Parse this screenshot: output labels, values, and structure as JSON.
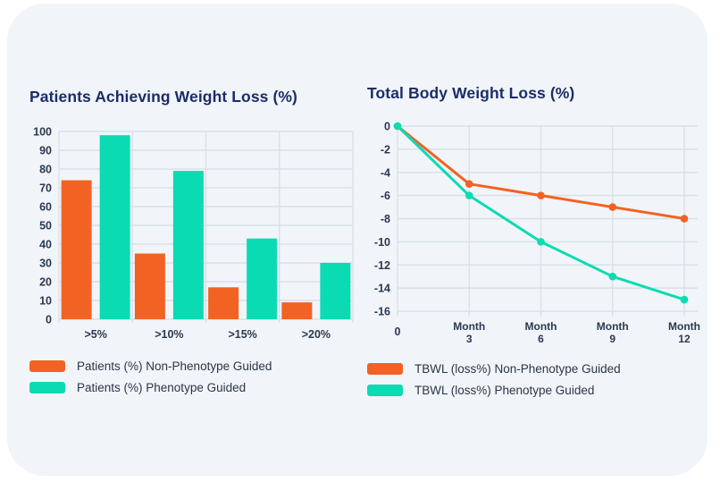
{
  "page": {
    "background": "#ffffff",
    "card_background": "#f1f5f9"
  },
  "colors": {
    "orange": "#f26223",
    "teal": "#0bdbb3",
    "title": "#1b2d69",
    "tick": "#2b3850",
    "grid": "#d8e0e8",
    "legend_text": "#2c3545"
  },
  "chart_data": [
    {
      "type": "bar",
      "title": "Patients Achieving Weight Loss (%)",
      "categories": [
        ">5%",
        ">10%",
        ">15%",
        ">20%"
      ],
      "series": [
        {
          "name": "Patients (%) Non-Phenotype Guided",
          "color": "#f26223",
          "values": [
            74,
            35,
            17,
            9
          ]
        },
        {
          "name": "Patients (%) Phenotype Guided",
          "color": "#0bdbb3",
          "values": [
            98,
            79,
            43,
            30
          ]
        }
      ],
      "xlabel": "",
      "ylabel": "",
      "ylim": [
        0,
        100
      ],
      "yticks": [
        0,
        10,
        20,
        30,
        40,
        50,
        60,
        70,
        80,
        90,
        100
      ],
      "grid": true,
      "legend_position": "bottom"
    },
    {
      "type": "line",
      "title": "Total Body Weight Loss (%)",
      "x": [
        0,
        3,
        6,
        9,
        12
      ],
      "x_tick_labels": [
        "0",
        "Month|3",
        "Month|6",
        "Month|9",
        "Month|12"
      ],
      "series": [
        {
          "name": "TBWL (loss%) Non-Phenotype Guided",
          "color": "#f26223",
          "values": [
            0,
            -5,
            -6,
            -7,
            -8
          ]
        },
        {
          "name": "TBWL (loss%) Phenotype Guided",
          "color": "#0bdbb3",
          "values": [
            0,
            -6,
            -10,
            -13,
            -15
          ]
        }
      ],
      "xlabel": "",
      "ylabel": "",
      "ylim": [
        -16,
        0
      ],
      "yticks": [
        0,
        -2,
        -4,
        -6,
        -8,
        -10,
        -12,
        -14,
        -16
      ],
      "grid": true,
      "legend_position": "bottom",
      "marker": "circle"
    }
  ]
}
